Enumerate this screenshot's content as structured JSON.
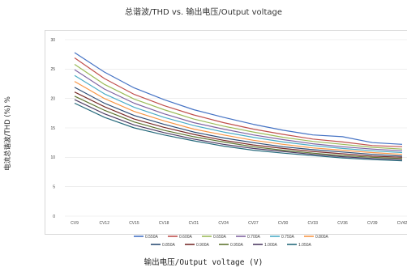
{
  "chart_data": {
    "type": "line",
    "title": "总谐波/THD vs. 输出电压/Output voltage",
    "xlabel": "输出电压/Output voltage (V)",
    "ylabel": "电流总谐波/THD (%) %",
    "ylim": [
      0,
      30
    ],
    "yticks": [
      0,
      5,
      10,
      15,
      20,
      25,
      30
    ],
    "grid": true,
    "legend_position": "bottom",
    "categories": [
      "CV9",
      "CV12",
      "CV15",
      "CV18",
      "CV21",
      "CV24",
      "CV27",
      "CV30",
      "CV33",
      "CV36",
      "CV39",
      "CV42"
    ],
    "series": [
      {
        "name": "0.550A",
        "color": "#4472c4",
        "values": [
          27.8,
          24.5,
          21.8,
          19.8,
          18.1,
          16.8,
          15.6,
          14.6,
          13.8,
          13.5,
          12.5,
          12.2
        ]
      },
      {
        "name": "0.600A",
        "color": "#c0504d",
        "values": [
          26.9,
          23.4,
          20.7,
          18.8,
          17.2,
          15.9,
          14.8,
          13.9,
          13.1,
          12.6,
          12.0,
          11.8
        ]
      },
      {
        "name": "0.650A",
        "color": "#9bbb59",
        "values": [
          25.8,
          22.4,
          19.9,
          18.1,
          16.5,
          15.3,
          14.3,
          13.4,
          12.7,
          12.2,
          11.7,
          11.4
        ]
      },
      {
        "name": "0.700A",
        "color": "#8064a2",
        "values": [
          24.9,
          21.6,
          19.2,
          17.4,
          15.9,
          14.8,
          13.8,
          13.0,
          12.3,
          11.8,
          11.4,
          11.1
        ]
      },
      {
        "name": "0.750A",
        "color": "#4bacc6",
        "values": [
          23.9,
          20.8,
          18.5,
          16.8,
          15.4,
          14.3,
          13.4,
          12.6,
          12.0,
          11.5,
          11.1,
          10.8
        ]
      },
      {
        "name": "0.800A",
        "color": "#f79646",
        "values": [
          22.9,
          20.0,
          17.8,
          16.2,
          14.8,
          13.8,
          12.9,
          12.2,
          11.6,
          11.2,
          10.8,
          10.5
        ]
      },
      {
        "name": "0.850A",
        "color": "#2c4d75",
        "values": [
          21.9,
          19.2,
          17.1,
          15.6,
          14.3,
          13.3,
          12.5,
          11.8,
          11.3,
          10.9,
          10.5,
          10.2
        ]
      },
      {
        "name": "0.900A",
        "color": "#772c2a",
        "values": [
          21.1,
          18.6,
          16.5,
          15.1,
          13.9,
          12.9,
          12.1,
          11.5,
          11.0,
          10.6,
          10.2,
          10.0
        ]
      },
      {
        "name": "0.950A",
        "color": "#5f7530",
        "values": [
          20.4,
          18.0,
          16.0,
          14.6,
          13.5,
          12.6,
          11.8,
          11.2,
          10.7,
          10.3,
          10.0,
          9.8
        ]
      },
      {
        "name": "1.000A",
        "color": "#4d3b62",
        "values": [
          19.8,
          17.4,
          15.5,
          14.2,
          13.1,
          12.2,
          11.5,
          11.0,
          10.5,
          10.1,
          9.8,
          9.6
        ]
      },
      {
        "name": "1.050A",
        "color": "#276a7c",
        "values": [
          19.2,
          16.8,
          15.0,
          13.8,
          12.8,
          11.9,
          11.2,
          10.7,
          10.3,
          9.9,
          9.6,
          9.4
        ]
      }
    ]
  }
}
